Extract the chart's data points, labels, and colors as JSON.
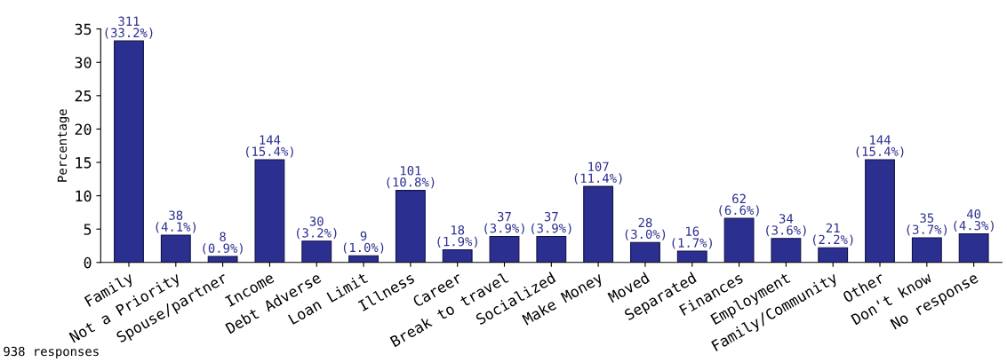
{
  "chart_data": {
    "type": "bar",
    "ylabel": "Percentage",
    "categories": [
      "Family",
      "Not a Priority",
      "Spouse/partner",
      "Income",
      "Debt Adverse",
      "Loan Limit",
      "Illness",
      "Career",
      "Break to travel",
      "Socialized",
      "Make Money",
      "Moved",
      "Separated",
      "Finances",
      "Employment",
      "Family/Community",
      "Other",
      "Don't know",
      "No response"
    ],
    "values": [
      33.2,
      4.1,
      0.9,
      15.4,
      3.2,
      1.0,
      10.8,
      1.9,
      3.9,
      3.9,
      11.4,
      3.0,
      1.7,
      6.6,
      3.6,
      2.2,
      15.4,
      3.7,
      4.3
    ],
    "value_labels": [
      "311\n(33.2%)",
      "38\n(4.1%)",
      "8\n(0.9%)",
      "144\n(15.4%)",
      "30\n(3.2%)",
      "9\n(1.0%)",
      "101\n(10.8%)",
      "18\n(1.9%)",
      "37\n(3.9%)",
      "37\n(3.9%)",
      "107\n(11.4%)",
      "28\n(3.0%)",
      "16\n(1.7%)",
      "62\n(6.6%)",
      "34\n(3.6%)",
      "21\n(2.2%)",
      "144\n(15.4%)",
      "35\n(3.7%)",
      "40\n(4.3%)"
    ],
    "color": "#2b2f8f",
    "ylim": [
      0,
      35
    ],
    "yticks": [
      0,
      5,
      10,
      15,
      20,
      25,
      30,
      35
    ],
    "grid": false,
    "legend": false,
    "annotations": [
      "938 responses"
    ]
  }
}
